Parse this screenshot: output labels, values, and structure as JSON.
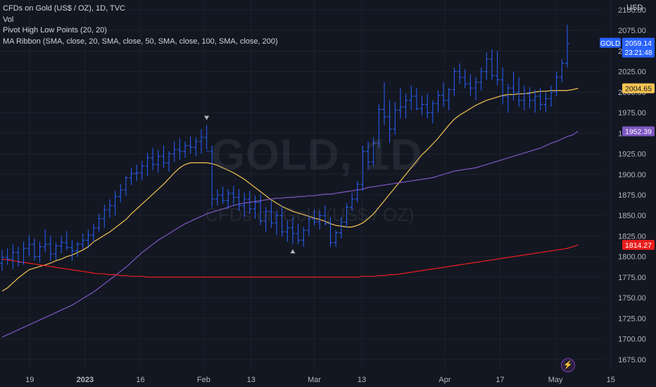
{
  "legend": {
    "title": "CFDs on Gold (US$ / OZ), 1D, TVC",
    "vol": "Vol",
    "pivot": "Pivot High Low Points (20, 20)",
    "ribbon": "MA Ribbon (SMA, close, 20, SMA, close, 50, SMA, close, 100, SMA, close, 200)"
  },
  "watermark": {
    "symbol": "GOLD, 1D",
    "description": "CFDs on Gold (US$ / OZ)"
  },
  "axis": {
    "currency": "USD"
  },
  "colors": {
    "background": "#131722",
    "bar": "#2962ff",
    "ma20": "#f5c451",
    "ma50": "#7e57c2",
    "ma200": "#e91e1e",
    "grid": "#1e222d"
  },
  "chart_data": {
    "type": "ohlc",
    "title": "CFDs on Gold (US$ / OZ), 1D, TVC",
    "ylim": [
      1662,
      2112
    ],
    "y_ticks": [
      2100,
      2075,
      2050,
      2025,
      2000,
      1975,
      1950,
      1925,
      1900,
      1875,
      1850,
      1825,
      1800,
      1775,
      1750,
      1725,
      1700,
      1675
    ],
    "x_ticks": [
      {
        "label": "19",
        "date": "2022-12-19"
      },
      {
        "label": "2023",
        "date": "2023-01-02",
        "bold": true
      },
      {
        "label": "16",
        "date": "2023-01-16"
      },
      {
        "label": "Feb",
        "date": "2023-02-01"
      },
      {
        "label": "13",
        "date": "2023-02-13"
      },
      {
        "label": "Mar",
        "date": "2023-03-01"
      },
      {
        "label": "13",
        "date": "2023-03-13"
      },
      {
        "label": "Apr",
        "date": "2023-04-03"
      },
      {
        "label": "17",
        "date": "2023-04-17"
      },
      {
        "label": "May",
        "date": "2023-05-01"
      },
      {
        "label": "15",
        "date": "2023-05-15"
      }
    ],
    "ohlc": [
      [
        1792,
        1808,
        1783,
        1799
      ],
      [
        1799,
        1810,
        1790,
        1797
      ],
      [
        1797,
        1815,
        1785,
        1805
      ],
      [
        1805,
        1812,
        1788,
        1793
      ],
      [
        1793,
        1818,
        1790,
        1810
      ],
      [
        1810,
        1826,
        1800,
        1815
      ],
      [
        1815,
        1822,
        1795,
        1800
      ],
      [
        1800,
        1818,
        1793,
        1812
      ],
      [
        1812,
        1833,
        1805,
        1815
      ],
      [
        1815,
        1825,
        1795,
        1803
      ],
      [
        1803,
        1817,
        1796,
        1813
      ],
      [
        1813,
        1825,
        1804,
        1817
      ],
      [
        1817,
        1831,
        1808,
        1811
      ],
      [
        1811,
        1820,
        1795,
        1807
      ],
      [
        1807,
        1818,
        1800,
        1815
      ],
      [
        1815,
        1828,
        1809,
        1820
      ],
      [
        1820,
        1833,
        1810,
        1826
      ],
      [
        1826,
        1840,
        1818,
        1835
      ],
      [
        1835,
        1852,
        1830,
        1846
      ],
      [
        1846,
        1863,
        1835,
        1857
      ],
      [
        1857,
        1870,
        1847,
        1862
      ],
      [
        1862,
        1880,
        1850,
        1873
      ],
      [
        1873,
        1888,
        1866,
        1881
      ],
      [
        1881,
        1898,
        1874,
        1896
      ],
      [
        1896,
        1908,
        1887,
        1901
      ],
      [
        1901,
        1912,
        1892,
        1902
      ],
      [
        1902,
        1916,
        1893,
        1910
      ],
      [
        1910,
        1926,
        1898,
        1920
      ],
      [
        1920,
        1932,
        1905,
        1912
      ],
      [
        1912,
        1930,
        1902,
        1922
      ],
      [
        1922,
        1935,
        1908,
        1914
      ],
      [
        1914,
        1928,
        1903,
        1925
      ],
      [
        1925,
        1940,
        1915,
        1930
      ],
      [
        1930,
        1944,
        1918,
        1928
      ],
      [
        1928,
        1940,
        1920,
        1935
      ],
      [
        1935,
        1946,
        1925,
        1933
      ],
      [
        1933,
        1945,
        1922,
        1940
      ],
      [
        1940,
        1955,
        1925,
        1945
      ],
      [
        1945,
        1960,
        1930,
        1928
      ],
      [
        1928,
        1935,
        1860,
        1870
      ],
      [
        1870,
        1882,
        1862,
        1875
      ],
      [
        1875,
        1885,
        1864,
        1868
      ],
      [
        1868,
        1882,
        1858,
        1877
      ],
      [
        1877,
        1886,
        1862,
        1872
      ],
      [
        1872,
        1882,
        1856,
        1862
      ],
      [
        1862,
        1878,
        1848,
        1870
      ],
      [
        1870,
        1880,
        1852,
        1858
      ],
      [
        1858,
        1874,
        1846,
        1866
      ],
      [
        1866,
        1876,
        1838,
        1843
      ],
      [
        1843,
        1860,
        1830,
        1855
      ],
      [
        1855,
        1868,
        1835,
        1841
      ],
      [
        1841,
        1856,
        1826,
        1850
      ],
      [
        1850,
        1862,
        1824,
        1830
      ],
      [
        1830,
        1844,
        1818,
        1835
      ],
      [
        1835,
        1848,
        1815,
        1828
      ],
      [
        1828,
        1840,
        1815,
        1820
      ],
      [
        1820,
        1836,
        1812,
        1832
      ],
      [
        1832,
        1850,
        1825,
        1846
      ],
      [
        1846,
        1858,
        1838,
        1842
      ],
      [
        1842,
        1856,
        1833,
        1850
      ],
      [
        1850,
        1862,
        1838,
        1840
      ],
      [
        1840,
        1848,
        1812,
        1817
      ],
      [
        1817,
        1832,
        1812,
        1829
      ],
      [
        1829,
        1848,
        1822,
        1842
      ],
      [
        1842,
        1865,
        1835,
        1860
      ],
      [
        1860,
        1878,
        1855,
        1870
      ],
      [
        1870,
        1892,
        1866,
        1888
      ],
      [
        1888,
        1935,
        1880,
        1928
      ],
      [
        1928,
        1940,
        1906,
        1915
      ],
      [
        1915,
        1945,
        1910,
        1938
      ],
      [
        1938,
        1985,
        1932,
        1979
      ],
      [
        1979,
        2012,
        1960,
        1970
      ],
      [
        1970,
        1990,
        1938,
        1955
      ],
      [
        1955,
        1988,
        1948,
        1978
      ],
      [
        1978,
        2005,
        1968,
        1982
      ],
      [
        1982,
        1998,
        1968,
        1990
      ],
      [
        1990,
        2008,
        1978,
        1995
      ],
      [
        1995,
        2005,
        1978,
        1980
      ],
      [
        1980,
        1996,
        1972,
        1985
      ],
      [
        1985,
        1998,
        1968,
        1975
      ],
      [
        1975,
        1990,
        1962,
        1986
      ],
      [
        1986,
        2002,
        1975,
        1996
      ],
      [
        1996,
        2012,
        1982,
        1990
      ],
      [
        1990,
        2005,
        1978,
        2003
      ],
      [
        2003,
        2030,
        1995,
        2025
      ],
      [
        2025,
        2035,
        2010,
        2018
      ],
      [
        2018,
        2028,
        2005,
        2010
      ],
      [
        2010,
        2022,
        1995,
        2005
      ],
      [
        2005,
        2018,
        1990,
        2012
      ],
      [
        2012,
        2030,
        2002,
        2025
      ],
      [
        2025,
        2048,
        2015,
        2040
      ],
      [
        2040,
        2052,
        2015,
        2020
      ],
      [
        2020,
        2050,
        2008,
        2015
      ],
      [
        2015,
        2030,
        1985,
        1995
      ],
      [
        1995,
        2010,
        1975,
        2005
      ],
      [
        2005,
        2025,
        1990,
        2000
      ],
      [
        2000,
        2018,
        1982,
        1990
      ],
      [
        1990,
        2008,
        1978,
        1998
      ],
      [
        1998,
        2006,
        1980,
        1990
      ],
      [
        1990,
        2003,
        1975,
        1995
      ],
      [
        1995,
        2005,
        1978,
        1985
      ],
      [
        1985,
        2000,
        1976,
        1992
      ],
      [
        1992,
        2008,
        1982,
        2000
      ],
      [
        2000,
        2025,
        1995,
        2018
      ],
      [
        2018,
        2040,
        2012,
        2035
      ],
      [
        2035,
        2082,
        2030,
        2059.14
      ]
    ],
    "ma_ribbon": [
      {
        "name": "SMA 20",
        "color": "#f5c451",
        "values": [
          1758,
          1762,
          1768,
          1774,
          1779,
          1784,
          1786,
          1788,
          1790,
          1792,
          1795,
          1797,
          1800,
          1802,
          1805,
          1808,
          1812,
          1818,
          1822,
          1826,
          1830,
          1835,
          1840,
          1845,
          1852,
          1858,
          1864,
          1870,
          1876,
          1882,
          1888,
          1895,
          1902,
          1908,
          1912,
          1914,
          1914,
          1914,
          1914,
          1913,
          1911,
          1908,
          1905,
          1902,
          1898,
          1894,
          1889,
          1884,
          1879,
          1874,
          1869,
          1865,
          1861,
          1858,
          1855,
          1853,
          1851,
          1849,
          1847,
          1845,
          1843,
          1840,
          1838,
          1837,
          1836,
          1836,
          1838,
          1841,
          1846,
          1852,
          1860,
          1868,
          1876,
          1884,
          1892,
          1900,
          1908,
          1916,
          1924,
          1930,
          1937,
          1944,
          1952,
          1960,
          1967,
          1972,
          1976,
          1980,
          1984,
          1987,
          1990,
          1992,
          1994,
          1996,
          1997,
          1997,
          1998,
          1998,
          1999,
          2000,
          2001,
          2001,
          2002,
          2002,
          2002,
          2002,
          2003,
          2004.65
        ]
      },
      {
        "name": "SMA 50",
        "color": "#7e57c2",
        "values": [
          1702,
          1705,
          1708,
          1711,
          1714,
          1717,
          1720,
          1723,
          1726,
          1729,
          1732,
          1735,
          1738,
          1741,
          1745,
          1749,
          1753,
          1757,
          1762,
          1767,
          1772,
          1777,
          1782,
          1787,
          1793,
          1799,
          1805,
          1810,
          1815,
          1820,
          1824,
          1828,
          1832,
          1836,
          1840,
          1843,
          1846,
          1849,
          1852,
          1854,
          1856,
          1858,
          1860,
          1862,
          1864,
          1865,
          1866,
          1867,
          1868,
          1869,
          1870,
          1871,
          1871,
          1872,
          1872,
          1873,
          1873,
          1874,
          1874,
          1875,
          1876,
          1876,
          1877,
          1878,
          1879,
          1880,
          1881,
          1882,
          1884,
          1885,
          1886,
          1887,
          1888,
          1889,
          1890,
          1891,
          1892,
          1893,
          1894,
          1895,
          1896,
          1898,
          1900,
          1902,
          1904,
          1905,
          1906,
          1907,
          1908,
          1910,
          1912,
          1914,
          1916,
          1918,
          1920,
          1922,
          1924,
          1926,
          1928,
          1930,
          1932,
          1935,
          1938,
          1940,
          1943,
          1946,
          1948,
          1952.39
        ]
      },
      {
        "name": "SMA 200",
        "color": "#e91e1e",
        "values": [
          1797,
          1796,
          1795,
          1794,
          1793,
          1792,
          1791,
          1790,
          1789,
          1788,
          1787,
          1786,
          1785,
          1784,
          1783,
          1782,
          1781,
          1780,
          1779,
          1779,
          1778,
          1778,
          1777,
          1777,
          1776,
          1776,
          1776,
          1775,
          1775,
          1775,
          1775,
          1775,
          1775,
          1775,
          1775,
          1775,
          1775,
          1775,
          1775,
          1775,
          1775,
          1775,
          1775,
          1775,
          1775,
          1775,
          1775,
          1775,
          1775,
          1775,
          1775,
          1775,
          1775,
          1775,
          1775,
          1775,
          1775,
          1775,
          1775,
          1775,
          1775,
          1775,
          1775,
          1775,
          1775,
          1775,
          1775,
          1776,
          1776,
          1776,
          1777,
          1777,
          1778,
          1778,
          1779,
          1780,
          1781,
          1782,
          1783,
          1784,
          1785,
          1786,
          1787,
          1788,
          1789,
          1790,
          1791,
          1792,
          1793,
          1794,
          1795,
          1796,
          1797,
          1798,
          1799,
          1800,
          1801,
          1802,
          1803,
          1804,
          1805,
          1806,
          1807,
          1808,
          1809,
          1810,
          1812,
          1814.27
        ]
      }
    ],
    "pivots": [
      {
        "type": "high",
        "index": 38
      },
      {
        "type": "low",
        "index": 54
      }
    ],
    "price_labels": [
      {
        "name": "GOLD",
        "text": "GOLD",
        "value": "2059.14",
        "countdown": "23:21:48",
        "price": 2059.14,
        "color": "#2962ff"
      },
      {
        "name": "ma20",
        "value": "2004.65",
        "price": 2004.65,
        "color": "#f5c451"
      },
      {
        "name": "ma50",
        "value": "1952.39",
        "price": 1952.39,
        "color": "#7e57c2"
      },
      {
        "name": "ma200",
        "value": "1814.27",
        "price": 1814.27,
        "color": "#e91e1e"
      }
    ]
  }
}
